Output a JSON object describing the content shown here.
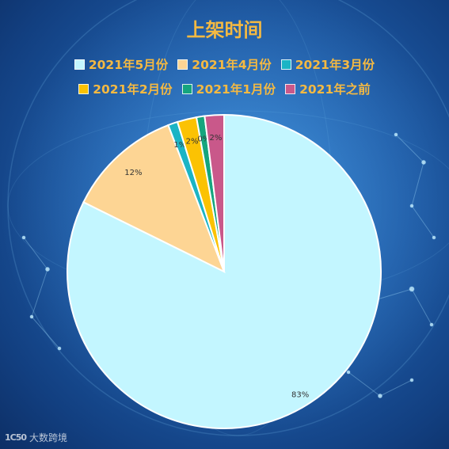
{
  "chart_data": {
    "type": "pie",
    "title": "上架时间",
    "categories": [
      "2021年5月份",
      "2021年4月份",
      "2021年3月份",
      "2021年2月份",
      "2021年1月份",
      "2021年之前"
    ],
    "values": [
      83,
      12,
      1,
      2,
      0,
      2
    ],
    "data_labels": [
      "83%",
      "12%",
      "1%",
      "2%",
      "0%",
      "2%"
    ],
    "colors": [
      "#c3f6ff",
      "#fdd594",
      "#1bb4c5",
      "#fbc203",
      "#15a57e",
      "#c9588a"
    ],
    "legend_position": "top"
  },
  "watermark": {
    "logo": "1C50",
    "text": "大数跨境"
  }
}
